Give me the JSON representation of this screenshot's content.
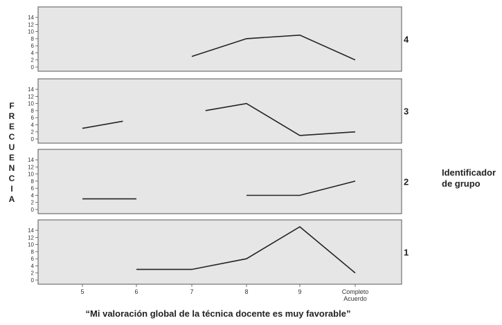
{
  "chart_data": {
    "type": "line",
    "xlabel": "“Mi valoración global de la técnica docente es muy favorable”",
    "ylabel": "FRECUENCIA",
    "legend_title_lines": [
      "Identificador",
      "de grupo"
    ],
    "x_categories": [
      "5",
      "6",
      "7",
      "8",
      "9",
      "Completo Acuerdo"
    ],
    "x_tick_labels": [
      [
        "5"
      ],
      [
        "6"
      ],
      [
        "7"
      ],
      [
        "8"
      ],
      [
        "9"
      ],
      [
        "Completo",
        "Acuerdo"
      ]
    ],
    "y_ticks": [
      "0",
      "2",
      "4",
      "6",
      "8",
      "10",
      "12",
      "14"
    ],
    "ylim": [
      0,
      15
    ],
    "grid": false,
    "panels": [
      {
        "group": "4",
        "segments": [
          {
            "x": [
              "7",
              "8",
              "9",
              "Completo Acuerdo"
            ],
            "y": [
              3,
              8,
              9,
              2
            ]
          }
        ]
      },
      {
        "group": "3",
        "segments": [
          {
            "x": [
              "5",
              "5.75"
            ],
            "y": [
              3,
              5
            ]
          },
          {
            "x": [
              "7.25",
              "8",
              "9",
              "Completo Acuerdo"
            ],
            "y": [
              8,
              10,
              1,
              2
            ]
          }
        ]
      },
      {
        "group": "2",
        "segments": [
          {
            "x": [
              "5",
              "6"
            ],
            "y": [
              3,
              3
            ]
          },
          {
            "x": [
              "8",
              "9",
              "Completo Acuerdo"
            ],
            "y": [
              4,
              4,
              8
            ]
          }
        ]
      },
      {
        "group": "1",
        "segments": [
          {
            "x": [
              "6",
              "7",
              "8",
              "9",
              "Completo Acuerdo"
            ],
            "y": [
              3,
              3,
              6,
              15,
              2
            ]
          }
        ]
      }
    ],
    "colors": {
      "panel_fill": "#e6e6e6",
      "line": "#222222",
      "frame": "#555555"
    }
  }
}
